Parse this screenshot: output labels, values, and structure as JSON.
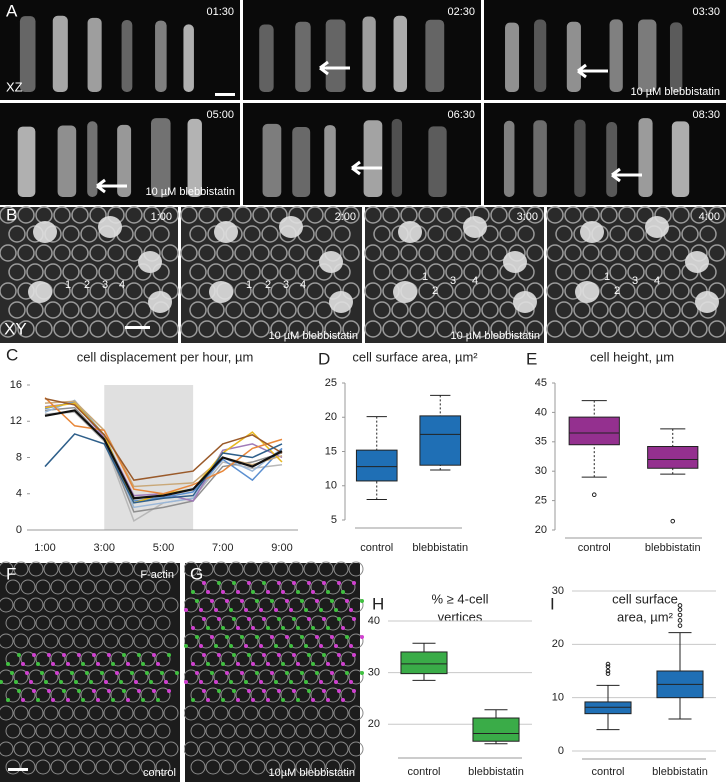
{
  "figure": {
    "panel_letters": [
      "A",
      "B",
      "C",
      "D",
      "E",
      "F",
      "G",
      "H",
      "I"
    ],
    "a_panels": {
      "timestamps": [
        "01:30",
        "02:30",
        "03:30",
        "05:00",
        "06:30",
        "08:30"
      ],
      "view": "XZ",
      "treatment_labels": [
        "10 µM blebbistatin",
        "10 µM blebbistatin"
      ]
    },
    "b_panels": {
      "timestamps": [
        "1:00",
        "2:00",
        "3:00",
        "4:00"
      ],
      "view": "XY",
      "cell_numbers": [
        "1",
        "2",
        "3",
        "4"
      ],
      "treatment_labels": [
        "10 µM blebbistatin",
        "10 µM blebbistatin"
      ]
    },
    "f_panel": {
      "stain": "F-actin",
      "condition": "control"
    },
    "g_panel": {
      "condition": "10µM blebbistatin"
    }
  },
  "chart_data": [
    {
      "type": "line",
      "title": [
        "cell displacement per hour, µm"
      ],
      "x": [
        1,
        2,
        3,
        4,
        5,
        6,
        7,
        8,
        9
      ],
      "xlim": [
        1,
        9
      ],
      "xticks": [
        {
          "value": 1,
          "label": "1:00"
        },
        {
          "value": 3,
          "label": "3:00"
        },
        {
          "value": 5,
          "label": "5:00"
        },
        {
          "value": 7,
          "label": "7:00"
        },
        {
          "value": 9,
          "label": "9:00"
        }
      ],
      "ylim": [
        0,
        16
      ],
      "yticks": [
        0,
        4,
        8,
        12,
        16
      ],
      "grid": false,
      "shaded_region": [
        3,
        6
      ],
      "series": [
        {
          "color": "#b8b8b8",
          "values": [
            12.8,
            13.0,
            9.8,
            1.0,
            3.0,
            3.5,
            7.5,
            6.8,
            7.2
          ]
        },
        {
          "color": "#8f8f8f",
          "values": [
            13.2,
            13.5,
            10.0,
            2.0,
            2.5,
            3.2,
            7.0,
            7.5,
            8.5
          ]
        },
        {
          "color": "#9ab7d8",
          "values": [
            13.0,
            14.3,
            10.5,
            2.5,
            3.0,
            3.5,
            8.0,
            6.5,
            9.0
          ]
        },
        {
          "color": "#a07ab8",
          "values": [
            13.6,
            14.0,
            10.2,
            3.8,
            4.0,
            3.2,
            8.8,
            9.5,
            8.0
          ]
        },
        {
          "color": "#5b8fd0",
          "values": [
            13.4,
            14.1,
            10.5,
            3.2,
            3.6,
            4.2,
            7.8,
            5.5,
            9.0
          ]
        },
        {
          "color": "#c9a878",
          "values": [
            14.0,
            14.2,
            11.0,
            4.8,
            5.0,
            5.2,
            8.0,
            7.2,
            8.2
          ]
        },
        {
          "color": "#e8b820",
          "values": [
            13.5,
            14.0,
            10.5,
            3.0,
            4.0,
            4.5,
            8.5,
            10.8,
            7.5
          ]
        },
        {
          "color": "#e8873a",
          "values": [
            14.6,
            11.5,
            11.0,
            4.5,
            4.0,
            5.0,
            6.5,
            9.0,
            10.0
          ]
        },
        {
          "color": "#9a5a2a",
          "values": [
            14.5,
            13.8,
            10.5,
            5.5,
            6.0,
            6.5,
            9.5,
            10.5,
            8.5
          ]
        },
        {
          "color": "#2e5f8a",
          "values": [
            7.0,
            10.6,
            9.5,
            3.0,
            3.5,
            3.8,
            8.5,
            8.0,
            9.5
          ]
        },
        {
          "color": "#111111",
          "values": [
            12.6,
            13.2,
            10.0,
            3.5,
            3.8,
            4.5,
            8.0,
            7.0,
            8.7
          ]
        }
      ]
    },
    {
      "type": "box",
      "title": [
        "cell surface area, µm²"
      ],
      "categories": [
        "control",
        "blebbistatin"
      ],
      "color": "#1f6fb5",
      "ylim": [
        5,
        25
      ],
      "yticks": [
        5,
        10,
        15,
        20,
        25
      ],
      "grid": false,
      "boxes": [
        {
          "min": 8,
          "q1": 10.7,
          "median": 12.8,
          "q3": 15.2,
          "max": 20.1
        },
        {
          "min": 12.3,
          "q1": 13,
          "median": 17.5,
          "q3": 20.2,
          "max": 23.2
        }
      ]
    },
    {
      "type": "box",
      "title": [
        "cell height, µm"
      ],
      "categories": [
        "control",
        "blebbistatin"
      ],
      "color": "#94308f",
      "ylim": [
        20,
        45
      ],
      "yticks": [
        20,
        25,
        30,
        35,
        40,
        45
      ],
      "grid": false,
      "boxes": [
        {
          "min": 29,
          "q1": 34.5,
          "median": 36.5,
          "q3": 39.2,
          "max": 42,
          "outliers": [
            26
          ]
        },
        {
          "min": 29.5,
          "q1": 30.5,
          "median": 32,
          "q3": 34.2,
          "max": 37.2,
          "outliers": [
            21.5
          ]
        }
      ]
    },
    {
      "type": "box",
      "title": [
        "% ≥ 4-cell",
        "vertices"
      ],
      "categories": [
        "control",
        "blebbistatin"
      ],
      "color": "#3aac48",
      "ylim": [
        15,
        40
      ],
      "yticks": [
        20,
        30,
        40
      ],
      "grid": true,
      "boxes": [
        {
          "min": 28.5,
          "q1": 29.8,
          "median": 31.7,
          "q3": 34,
          "max": 35.7
        },
        {
          "min": 16.2,
          "q1": 16.7,
          "median": 18.2,
          "q3": 21.2,
          "max": 22.8
        }
      ]
    },
    {
      "type": "box",
      "title": [
        "cell surface",
        "area, µm²"
      ],
      "categories": [
        "control",
        "blebbistatin"
      ],
      "color": "#1f6fb5",
      "ylim": [
        0,
        30
      ],
      "yticks": [
        0,
        10,
        20,
        30
      ],
      "grid": true,
      "boxes": [
        {
          "min": 4,
          "q1": 7,
          "median": 8.2,
          "q3": 9.2,
          "max": 12.3,
          "outliers": [
            14.5,
            15,
            15.8,
            16.3
          ]
        },
        {
          "min": 6,
          "q1": 10,
          "median": 12.5,
          "q3": 15,
          "max": 22.2,
          "outliers": [
            23.5,
            24.5,
            25.5,
            26.5,
            27.3
          ]
        }
      ]
    }
  ]
}
